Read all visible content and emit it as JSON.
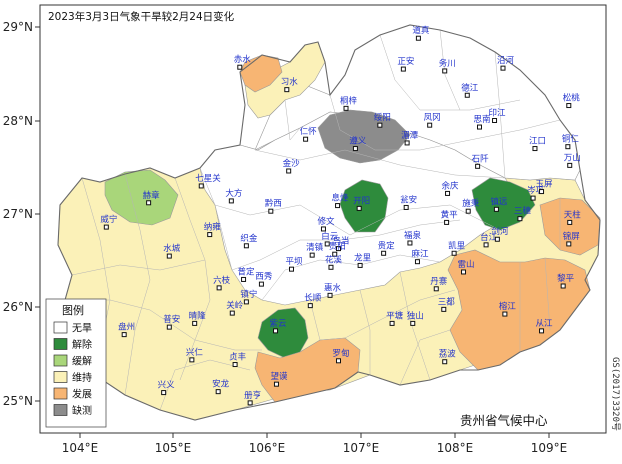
{
  "title": "2023年3月3日气象干旱较2月24日变化",
  "axes": {
    "x_ticks": [
      "104°E",
      "105°E",
      "106°E",
      "107°E",
      "108°E",
      "109°E"
    ],
    "y_ticks": [
      "29°N",
      "28°N",
      "27°N",
      "26°N",
      "25°N"
    ]
  },
  "legend": {
    "title": "图例",
    "items": [
      {
        "label": "无旱",
        "color": "#ffffff"
      },
      {
        "label": "解除",
        "color": "#2e8b3c"
      },
      {
        "label": "缓解",
        "color": "#a9d67a"
      },
      {
        "label": "维持",
        "color": "#fbf1b8"
      },
      {
        "label": "发展",
        "color": "#f7b573"
      },
      {
        "label": "缺测",
        "color": "#8c8c8c"
      }
    ]
  },
  "credit": "贵州省气候中心",
  "serial": "GS(2017)3320号",
  "cities": [
    {
      "name": "道真",
      "lon": 107.6,
      "lat": 28.88
    },
    {
      "name": "赤水",
      "lon": 105.7,
      "lat": 28.57
    },
    {
      "name": "习水",
      "lon": 106.2,
      "lat": 28.33
    },
    {
      "name": "正安",
      "lon": 107.44,
      "lat": 28.55
    },
    {
      "name": "务川",
      "lon": 107.88,
      "lat": 28.53
    },
    {
      "name": "沿河",
      "lon": 108.5,
      "lat": 28.56
    },
    {
      "name": "德江",
      "lon": 108.12,
      "lat": 28.27
    },
    {
      "name": "桐梓",
      "lon": 106.83,
      "lat": 28.13
    },
    {
      "name": "绥阳",
      "lon": 107.19,
      "lat": 27.95
    },
    {
      "name": "凤冈",
      "lon": 107.72,
      "lat": 27.95
    },
    {
      "name": "印江",
      "lon": 108.41,
      "lat": 28.0
    },
    {
      "name": "松桃",
      "lon": 109.2,
      "lat": 28.16
    },
    {
      "name": "仁怀",
      "lon": 106.4,
      "lat": 27.8
    },
    {
      "name": "湄潭",
      "lon": 107.48,
      "lat": 27.76
    },
    {
      "name": "思南",
      "lon": 108.25,
      "lat": 27.93
    },
    {
      "name": "江口",
      "lon": 108.84,
      "lat": 27.7
    },
    {
      "name": "铜仁",
      "lon": 109.19,
      "lat": 27.72
    },
    {
      "name": "遵义",
      "lon": 106.93,
      "lat": 27.7
    },
    {
      "name": "石阡",
      "lon": 108.23,
      "lat": 27.51
    },
    {
      "name": "万山",
      "lon": 109.21,
      "lat": 27.52
    },
    {
      "name": "金沙",
      "lon": 106.22,
      "lat": 27.46
    },
    {
      "name": "赫章",
      "lon": 104.73,
      "lat": 27.12
    },
    {
      "name": "七星关",
      "lon": 105.29,
      "lat": 27.3
    },
    {
      "name": "大方",
      "lon": 105.61,
      "lat": 27.14
    },
    {
      "name": "黔西",
      "lon": 106.03,
      "lat": 27.03
    },
    {
      "name": "息烽",
      "lon": 106.74,
      "lat": 27.09
    },
    {
      "name": "余庆",
      "lon": 107.91,
      "lat": 27.22
    },
    {
      "name": "施秉",
      "lon": 108.13,
      "lat": 27.03
    },
    {
      "name": "镇远",
      "lon": 108.43,
      "lat": 27.05
    },
    {
      "name": "岑巩",
      "lon": 108.82,
      "lat": 27.17
    },
    {
      "name": "玉屏",
      "lon": 108.91,
      "lat": 27.24
    },
    {
      "name": "威宁",
      "lon": 104.28,
      "lat": 26.86
    },
    {
      "name": "纳雍",
      "lon": 105.38,
      "lat": 26.78
    },
    {
      "name": "织金",
      "lon": 105.77,
      "lat": 26.66
    },
    {
      "name": "修文",
      "lon": 106.59,
      "lat": 26.84
    },
    {
      "name": "开阳",
      "lon": 106.97,
      "lat": 27.06
    },
    {
      "name": "瓮安",
      "lon": 107.47,
      "lat": 27.07
    },
    {
      "name": "黄平",
      "lon": 107.9,
      "lat": 26.91
    },
    {
      "name": "三穗",
      "lon": 108.68,
      "lat": 26.95
    },
    {
      "name": "天柱",
      "lon": 109.21,
      "lat": 26.91
    },
    {
      "name": "清镇",
      "lon": 106.47,
      "lat": 26.56
    },
    {
      "name": "白云",
      "lon": 106.63,
      "lat": 26.68
    },
    {
      "name": "乌当",
      "lon": 106.75,
      "lat": 26.63
    },
    {
      "name": "贵阳",
      "lon": 106.71,
      "lat": 26.57
    },
    {
      "name": "福泉",
      "lon": 107.51,
      "lat": 26.69
    },
    {
      "name": "凯里",
      "lon": 107.98,
      "lat": 26.58
    },
    {
      "name": "台江",
      "lon": 108.32,
      "lat": 26.67
    },
    {
      "name": "剑河",
      "lon": 108.44,
      "lat": 26.73
    },
    {
      "name": "锦屏",
      "lon": 109.2,
      "lat": 26.68
    },
    {
      "name": "赫章县",
      "lon": 104.7,
      "lat": 26.6,
      "hidden": true
    },
    {
      "name": "水城",
      "lon": 104.95,
      "lat": 26.55
    },
    {
      "name": "平坝",
      "lon": 106.25,
      "lat": 26.41
    },
    {
      "name": "花溪",
      "lon": 106.67,
      "lat": 26.43
    },
    {
      "name": "龙里",
      "lon": 106.98,
      "lat": 26.45
    },
    {
      "name": "贵定",
      "lon": 107.23,
      "lat": 26.58
    },
    {
      "name": "麻江",
      "lon": 107.59,
      "lat": 26.49
    },
    {
      "name": "雷山",
      "lon": 108.08,
      "lat": 26.38
    },
    {
      "name": "黎平",
      "lon": 109.14,
      "lat": 26.23
    },
    {
      "name": "六枝",
      "lon": 105.48,
      "lat": 26.21
    },
    {
      "name": "普定",
      "lon": 105.74,
      "lat": 26.3
    },
    {
      "name": "西秀",
      "lon": 105.93,
      "lat": 26.25
    },
    {
      "name": "长顺",
      "lon": 106.45,
      "lat": 26.02
    },
    {
      "name": "惠水",
      "lon": 106.66,
      "lat": 26.13
    },
    {
      "name": "丹寨",
      "lon": 107.79,
      "lat": 26.2
    },
    {
      "name": "榕江",
      "lon": 108.52,
      "lat": 25.93
    },
    {
      "name": "镇宁",
      "lon": 105.77,
      "lat": 26.06
    },
    {
      "name": "紫云",
      "lon": 106.08,
      "lat": 25.75
    },
    {
      "name": "罗甸",
      "lon": 106.75,
      "lat": 25.43
    },
    {
      "name": "平塘",
      "lon": 107.32,
      "lat": 25.83
    },
    {
      "name": "独山",
      "lon": 107.54,
      "lat": 25.83
    },
    {
      "name": "三都",
      "lon": 107.87,
      "lat": 25.98
    },
    {
      "name": "从江",
      "lon": 108.91,
      "lat": 25.75
    },
    {
      "name": "盘州",
      "lon": 104.47,
      "lat": 25.71
    },
    {
      "name": "普安",
      "lon": 104.95,
      "lat": 25.79
    },
    {
      "name": "晴隆",
      "lon": 105.22,
      "lat": 25.83
    },
    {
      "name": "关岭",
      "lon": 105.62,
      "lat": 25.94
    },
    {
      "name": "兴仁",
      "lon": 105.19,
      "lat": 25.44
    },
    {
      "name": "贞丰",
      "lon": 105.65,
      "lat": 25.39
    },
    {
      "name": "望谟",
      "lon": 106.09,
      "lat": 25.18
    },
    {
      "name": "荔波",
      "lon": 107.88,
      "lat": 25.42
    },
    {
      "name": "兴义",
      "lon": 104.89,
      "lat": 25.09
    },
    {
      "name": "安龙",
      "lon": 105.47,
      "lat": 25.1
    },
    {
      "name": "册亨",
      "lon": 105.81,
      "lat": 24.98
    }
  ]
}
